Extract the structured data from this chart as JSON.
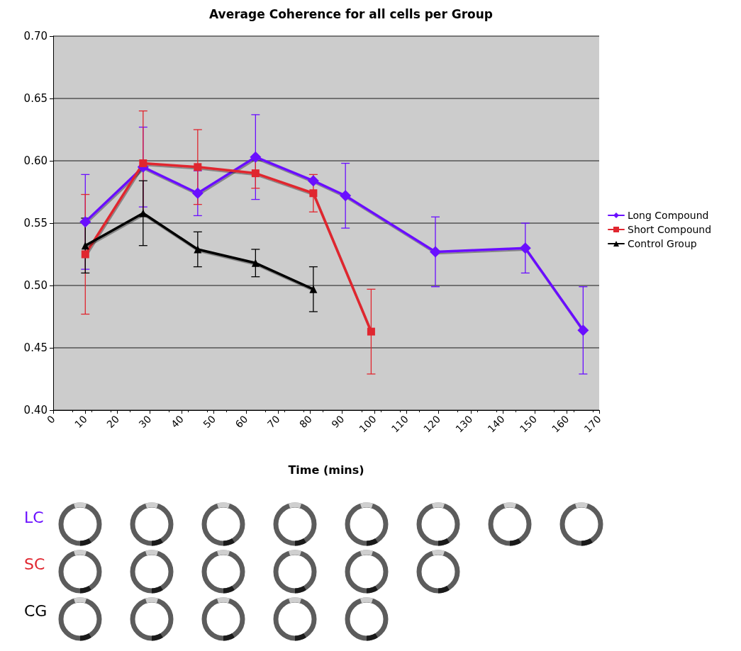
{
  "chart_data": {
    "type": "line",
    "title": "Average Coherence for all cells per Group",
    "xlabel": "Time (mins)",
    "xlim": [
      0,
      170
    ],
    "xticks": [
      0,
      10,
      20,
      30,
      40,
      50,
      60,
      70,
      80,
      90,
      100,
      110,
      120,
      130,
      140,
      150,
      160,
      170
    ],
    "ylim": [
      0.4,
      0.7
    ],
    "yticks": [
      {
        "value": 0.4,
        "label": "0.40"
      },
      {
        "value": 0.45,
        "label": "0.45"
      },
      {
        "value": 0.5,
        "label": "0.50"
      },
      {
        "value": 0.55,
        "label": "0.55"
      },
      {
        "value": 0.6,
        "label": "0.60"
      },
      {
        "value": 0.65,
        "label": "0.65"
      },
      {
        "value": 0.7,
        "label": "0.70"
      }
    ],
    "grid": "y",
    "legend": "right",
    "line_style": "solid",
    "annotations": [
      "LC",
      "SC",
      "CG"
    ],
    "series": [
      {
        "name": "Long Compound",
        "color": "#6a0fff",
        "marker": "diamond",
        "x": [
          10,
          28,
          45,
          63,
          81,
          91,
          119,
          147,
          165
        ],
        "values": [
          0.551,
          0.595,
          0.574,
          0.603,
          0.584,
          0.572,
          0.527,
          0.53,
          0.464
        ],
        "errors": [
          0.038,
          0.032,
          0.018,
          0.034,
          null,
          0.026,
          0.028,
          0.02,
          0.035
        ]
      },
      {
        "name": "Short Compound",
        "color": "#e0262f",
        "marker": "square",
        "x": [
          10,
          28,
          45,
          63,
          81,
          99
        ],
        "values": [
          0.525,
          0.598,
          0.595,
          0.59,
          0.574,
          0.463
        ],
        "errors": [
          0.048,
          0.042,
          0.03,
          0.012,
          0.015,
          0.034
        ]
      },
      {
        "name": "Control Group",
        "color": "#000000",
        "marker": "triangle",
        "x": [
          10,
          28,
          45,
          63,
          81
        ],
        "values": [
          0.532,
          0.558,
          0.529,
          0.518,
          0.497
        ],
        "errors": [
          0.022,
          0.026,
          0.014,
          0.011,
          0.018
        ]
      }
    ]
  }
}
